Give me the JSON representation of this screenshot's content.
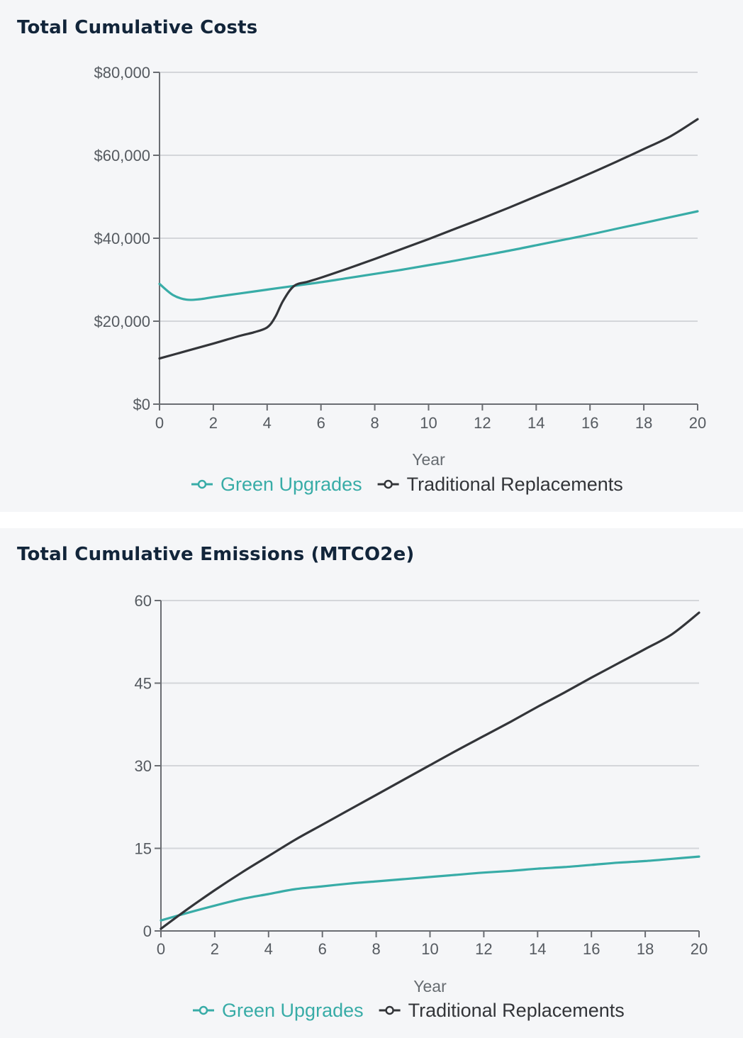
{
  "colors": {
    "green": "#38aca7",
    "traditional": "#333539",
    "grid": "#d4d6da",
    "axis": "#6a6d72"
  },
  "charts": [
    {
      "title": "Total Cumulative Costs",
      "chart_data": {
        "type": "line",
        "title": "Total Cumulative Costs",
        "xlabel": "Year",
        "ylabel": "",
        "xlim": [
          0,
          20
        ],
        "ylim": [
          0,
          80000
        ],
        "x_ticks": [
          0,
          2,
          4,
          6,
          8,
          10,
          12,
          14,
          16,
          18,
          20
        ],
        "y_ticks": [
          0,
          20000,
          40000,
          60000,
          80000
        ],
        "y_tick_labels": [
          "$0",
          "$20,000",
          "$40,000",
          "$60,000",
          "$80,000"
        ],
        "grid": true,
        "legend_position": "bottom-center",
        "series": [
          {
            "name": "Green Upgrades",
            "color": "#38aca7",
            "x": [
              0,
              0.5,
              1,
              1.5,
              2,
              3,
              4,
              5,
              6,
              7,
              8,
              9,
              10,
              11,
              12,
              13,
              14,
              15,
              16,
              17,
              18,
              19,
              20
            ],
            "values": [
              29000,
              26300,
              25200,
              25300,
              25800,
              26700,
              27600,
              28500,
              29400,
              30400,
              31400,
              32400,
              33500,
              34600,
              35800,
              37000,
              38300,
              39600,
              40900,
              42300,
              43700,
              45100,
              46500
            ]
          },
          {
            "name": "Traditional Replacements",
            "color": "#333539",
            "x": [
              0,
              1,
              2,
              3,
              3.5,
              4,
              4.3,
              4.6,
              5,
              5.5,
              6,
              7,
              8,
              9,
              10,
              11,
              12,
              13,
              14,
              15,
              16,
              17,
              18,
              19,
              20
            ],
            "values": [
              11000,
              12800,
              14600,
              16500,
              17300,
              18500,
              21000,
              25000,
              28500,
              29500,
              30500,
              32700,
              35000,
              37400,
              39800,
              42300,
              44800,
              47400,
              50100,
              52800,
              55600,
              58500,
              61500,
              64600,
              68700
            ]
          }
        ]
      }
    },
    {
      "title": "Total Cumulative Emissions (MTCO2e)",
      "chart_data": {
        "type": "line",
        "title": "Total Cumulative Emissions (MTCO2e)",
        "xlabel": "Year",
        "ylabel": "",
        "xlim": [
          0,
          20
        ],
        "ylim": [
          0,
          60
        ],
        "x_ticks": [
          0,
          2,
          4,
          6,
          8,
          10,
          12,
          14,
          16,
          18,
          20
        ],
        "y_ticks": [
          0,
          15,
          30,
          45,
          60
        ],
        "y_tick_labels": [
          "0",
          "15",
          "30",
          "45",
          "60"
        ],
        "grid": true,
        "legend_position": "bottom-center",
        "series": [
          {
            "name": "Green Upgrades",
            "color": "#38aca7",
            "x": [
              0,
              1,
              2,
              3,
              4,
              5,
              6,
              7,
              8,
              9,
              10,
              11,
              12,
              13,
              14,
              15,
              16,
              17,
              18,
              19,
              20
            ],
            "values": [
              1.9,
              3.3,
              4.6,
              5.8,
              6.7,
              7.6,
              8.1,
              8.6,
              9.0,
              9.4,
              9.8,
              10.2,
              10.6,
              10.9,
              11.3,
              11.6,
              12.0,
              12.4,
              12.7,
              13.1,
              13.5
            ]
          },
          {
            "name": "Traditional Replacements",
            "color": "#333539",
            "x": [
              0,
              1,
              2,
              3,
              4,
              5,
              6,
              7,
              8,
              9,
              10,
              11,
              12,
              13,
              14,
              15,
              16,
              17,
              18,
              19,
              20
            ],
            "values": [
              0.4,
              4.0,
              7.4,
              10.6,
              13.6,
              16.6,
              19.3,
              22.0,
              24.7,
              27.4,
              30.1,
              32.8,
              35.4,
              38.0,
              40.7,
              43.3,
              46.0,
              48.6,
              51.2,
              53.9,
              57.8
            ]
          }
        ]
      }
    }
  ]
}
